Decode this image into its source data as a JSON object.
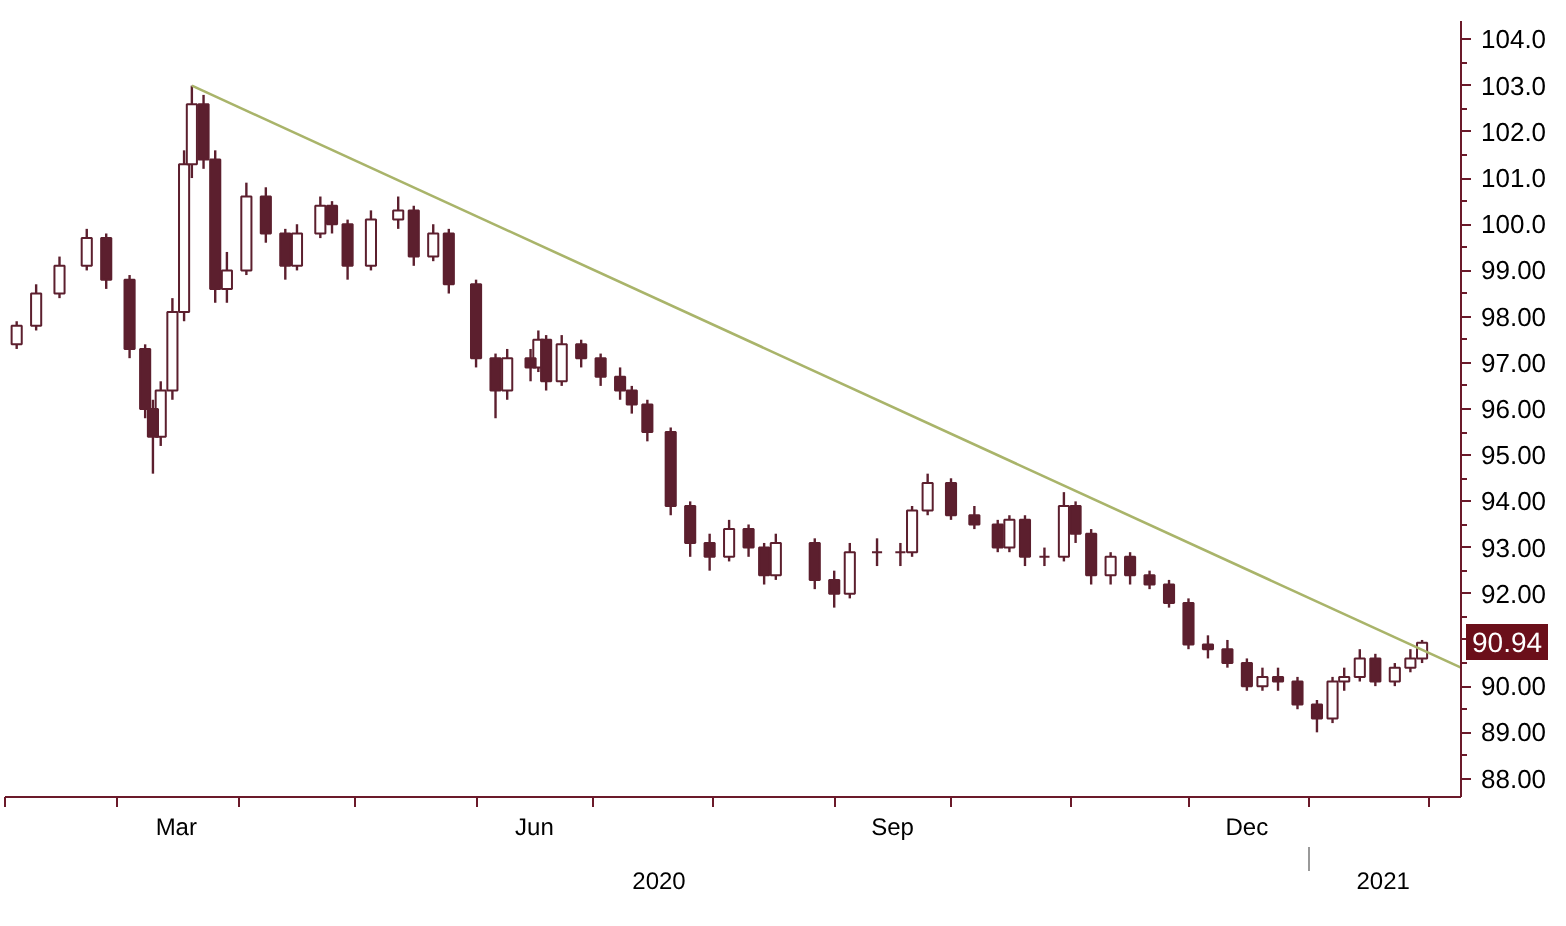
{
  "chart_data": {
    "type": "candlestick",
    "xlim": [
      "2020-02-01",
      "2021-02-09"
    ],
    "xticks": [
      {
        "value": "2020-02-01",
        "label": null
      },
      {
        "value": "2020-03-01",
        "label": null
      },
      {
        "value": "2020-04-01",
        "label": null
      },
      {
        "value": "2020-05-01",
        "label": null
      },
      {
        "value": "2020-06-01",
        "label": null
      },
      {
        "value": "2020-07-01",
        "label": null
      },
      {
        "value": "2020-08-01",
        "label": null
      },
      {
        "value": "2020-09-01",
        "label": null
      },
      {
        "value": "2020-10-01",
        "label": null
      },
      {
        "value": "2020-11-01",
        "label": null
      },
      {
        "value": "2020-12-01",
        "label": null
      },
      {
        "value": "2021-01-01",
        "label": null
      },
      {
        "value": "2021-02-01",
        "label": null
      },
      {
        "value": "2020-03-16",
        "label": "Mar"
      },
      {
        "value": "2020-06-16",
        "label": "Jun"
      },
      {
        "value": "2020-09-16",
        "label": "Sep"
      },
      {
        "value": "2020-12-16",
        "label": "Dec"
      }
    ],
    "x2lim": [
      "2020-02-01",
      "2021-02-09"
    ],
    "x2ticks": [
      {
        "value": "2020-07-18",
        "label": "2020"
      },
      {
        "value": "2021-01-20",
        "label": "2021"
      },
      {
        "value": "2021-01-01",
        "label": null
      }
    ],
    "ylim": [
      87.6,
      104.4
    ],
    "yticks": [
      {
        "value": 88,
        "label": "88.00"
      },
      {
        "value": 89,
        "label": "89.00"
      },
      {
        "value": 90,
        "label": "90.00"
      },
      {
        "value": 91,
        "label": null
      },
      {
        "value": 92,
        "label": "92.00"
      },
      {
        "value": 93,
        "label": "93.00"
      },
      {
        "value": 94,
        "label": "94.00"
      },
      {
        "value": 95,
        "label": "95.00"
      },
      {
        "value": 96,
        "label": "96.00"
      },
      {
        "value": 97,
        "label": "97.00"
      },
      {
        "value": 98,
        "label": "98.00"
      },
      {
        "value": 99,
        "label": "99.00"
      },
      {
        "value": 100,
        "label": "100.0"
      },
      {
        "value": 101,
        "label": "101.0"
      },
      {
        "value": 102,
        "label": "102.0"
      },
      {
        "value": 103,
        "label": "103.0"
      },
      {
        "value": 104,
        "label": "104.0"
      }
    ],
    "grid": false,
    "annotations": [
      {
        "text": "90.94",
        "x": "2021-01-30",
        "y": 90.94
      }
    ],
    "series": [
      {
        "type": "candlestick",
        "color": "#5c1f2e",
        "x": [
          "2020-02-04",
          "2020-02-09",
          "2020-02-15",
          "2020-02-22",
          "2020-02-27",
          "2020-03-04",
          "2020-03-08",
          "2020-03-10",
          "2020-03-12",
          "2020-03-15",
          "2020-03-18",
          "2020-03-20",
          "2020-03-23",
          "2020-03-26",
          "2020-03-29",
          "2020-04-03",
          "2020-04-08",
          "2020-04-13",
          "2020-04-16",
          "2020-04-22",
          "2020-04-25",
          "2020-04-29",
          "2020-05-05",
          "2020-05-12",
          "2020-05-16",
          "2020-05-21",
          "2020-05-25",
          "2020-06-01",
          "2020-06-06",
          "2020-06-09",
          "2020-06-15",
          "2020-06-17",
          "2020-06-19",
          "2020-06-23",
          "2020-06-28",
          "2020-07-03",
          "2020-07-08",
          "2020-07-11",
          "2020-07-15",
          "2020-07-21",
          "2020-07-26",
          "2020-07-31",
          "2020-08-05",
          "2020-08-10",
          "2020-08-14",
          "2020-08-17",
          "2020-08-27",
          "2020-09-01",
          "2020-09-05",
          "2020-09-12",
          "2020-09-18",
          "2020-09-21",
          "2020-09-25",
          "2020-10-01",
          "2020-10-07",
          "2020-10-13",
          "2020-10-16",
          "2020-10-20",
          "2020-10-25",
          "2020-10-30",
          "2020-11-02",
          "2020-11-06",
          "2020-11-11",
          "2020-11-16",
          "2020-11-21",
          "2020-11-26",
          "2020-12-01",
          "2020-12-06",
          "2020-12-11",
          "2020-12-16",
          "2020-12-20",
          "2020-12-24",
          "2020-12-29",
          "2021-01-03",
          "2021-01-07",
          "2021-01-10",
          "2021-01-14",
          "2021-01-18",
          "2021-01-23",
          "2021-01-27",
          "2021-01-30"
        ],
        "ohlc": [
          [
            97.4,
            97.9,
            97.3,
            97.8
          ],
          [
            97.8,
            98.7,
            97.7,
            98.5
          ],
          [
            98.5,
            99.3,
            98.4,
            99.1
          ],
          [
            99.1,
            99.9,
            99.0,
            99.7
          ],
          [
            99.7,
            99.8,
            98.6,
            98.8
          ],
          [
            98.8,
            98.9,
            97.1,
            97.3
          ],
          [
            97.3,
            97.4,
            95.8,
            96.0
          ],
          [
            96.0,
            96.2,
            94.6,
            95.4
          ],
          [
            95.4,
            96.6,
            95.2,
            96.4
          ],
          [
            96.4,
            98.4,
            96.2,
            98.1
          ],
          [
            98.1,
            101.6,
            97.9,
            101.3
          ],
          [
            101.3,
            103.0,
            101.0,
            102.6
          ],
          [
            102.6,
            102.8,
            101.2,
            101.4
          ],
          [
            101.4,
            101.6,
            98.3,
            98.6
          ],
          [
            98.6,
            99.4,
            98.3,
            99.0
          ],
          [
            99.0,
            100.9,
            98.9,
            100.6
          ],
          [
            100.6,
            100.8,
            99.6,
            99.8
          ],
          [
            99.8,
            99.9,
            98.8,
            99.1
          ],
          [
            99.1,
            100.0,
            99.0,
            99.8
          ],
          [
            99.8,
            100.6,
            99.7,
            100.4
          ],
          [
            100.4,
            100.5,
            99.8,
            100.0
          ],
          [
            100.0,
            100.1,
            98.8,
            99.1
          ],
          [
            99.1,
            100.3,
            99.0,
            100.1
          ],
          [
            100.1,
            100.6,
            99.9,
            100.3
          ],
          [
            100.3,
            100.4,
            99.1,
            99.3
          ],
          [
            99.3,
            100.0,
            99.2,
            99.8
          ],
          [
            99.8,
            99.9,
            98.5,
            98.7
          ],
          [
            98.7,
            98.8,
            96.9,
            97.1
          ],
          [
            97.1,
            97.2,
            95.8,
            96.4
          ],
          [
            96.4,
            97.3,
            96.2,
            97.1
          ],
          [
            97.1,
            97.3,
            96.6,
            96.9
          ],
          [
            96.9,
            97.7,
            96.8,
            97.5
          ],
          [
            97.5,
            97.6,
            96.4,
            96.6
          ],
          [
            96.6,
            97.6,
            96.5,
            97.4
          ],
          [
            97.4,
            97.5,
            96.9,
            97.1
          ],
          [
            97.1,
            97.2,
            96.5,
            96.7
          ],
          [
            96.7,
            96.9,
            96.2,
            96.4
          ],
          [
            96.4,
            96.5,
            95.9,
            96.1
          ],
          [
            96.1,
            96.2,
            95.3,
            95.5
          ],
          [
            95.5,
            95.6,
            93.7,
            93.9
          ],
          [
            93.9,
            94.0,
            92.8,
            93.1
          ],
          [
            93.1,
            93.3,
            92.5,
            92.8
          ],
          [
            92.8,
            93.6,
            92.7,
            93.4
          ],
          [
            93.4,
            93.5,
            92.8,
            93.0
          ],
          [
            93.0,
            93.1,
            92.2,
            92.4
          ],
          [
            92.4,
            93.3,
            92.3,
            93.1
          ],
          [
            93.1,
            93.2,
            92.1,
            92.3
          ],
          [
            92.3,
            92.5,
            91.7,
            92.0
          ],
          [
            92.0,
            93.1,
            91.9,
            92.9
          ],
          [
            92.9,
            93.2,
            92.6,
            92.9
          ],
          [
            92.9,
            93.1,
            92.6,
            92.9
          ],
          [
            92.9,
            93.9,
            92.8,
            93.8
          ],
          [
            93.8,
            94.6,
            93.7,
            94.4
          ],
          [
            94.4,
            94.5,
            93.6,
            93.7
          ],
          [
            93.7,
            93.9,
            93.4,
            93.5
          ],
          [
            93.5,
            93.6,
            92.9,
            93.0
          ],
          [
            93.0,
            93.7,
            92.9,
            93.6
          ],
          [
            93.6,
            93.7,
            92.6,
            92.8
          ],
          [
            92.8,
            93.0,
            92.6,
            92.8
          ],
          [
            92.8,
            94.2,
            92.7,
            93.9
          ],
          [
            93.9,
            94.0,
            93.1,
            93.3
          ],
          [
            93.3,
            93.4,
            92.2,
            92.4
          ],
          [
            92.4,
            92.9,
            92.2,
            92.8
          ],
          [
            92.8,
            92.9,
            92.2,
            92.4
          ],
          [
            92.4,
            92.5,
            92.1,
            92.2
          ],
          [
            92.2,
            92.3,
            91.7,
            91.8
          ],
          [
            91.8,
            91.9,
            90.8,
            90.9
          ],
          [
            90.9,
            91.1,
            90.6,
            90.8
          ],
          [
            90.8,
            91.0,
            90.4,
            90.5
          ],
          [
            90.5,
            90.6,
            89.9,
            90.0
          ],
          [
            90.0,
            90.4,
            89.9,
            90.2
          ],
          [
            90.2,
            90.4,
            89.9,
            90.1
          ],
          [
            90.1,
            90.2,
            89.5,
            89.6
          ],
          [
            89.6,
            89.7,
            89.0,
            89.3
          ],
          [
            89.3,
            90.2,
            89.2,
            90.1
          ],
          [
            90.1,
            90.4,
            89.9,
            90.2
          ],
          [
            90.2,
            90.8,
            90.1,
            90.6
          ],
          [
            90.6,
            90.7,
            90.0,
            90.1
          ],
          [
            90.1,
            90.5,
            90.0,
            90.4
          ],
          [
            90.4,
            90.8,
            90.3,
            90.6
          ],
          [
            90.6,
            91.0,
            90.5,
            90.94
          ]
        ]
      },
      {
        "type": "line",
        "color": "#a9b46a",
        "x": [
          "2020-03-20",
          "2021-02-09"
        ],
        "values": [
          103.0,
          90.4
        ]
      }
    ]
  }
}
